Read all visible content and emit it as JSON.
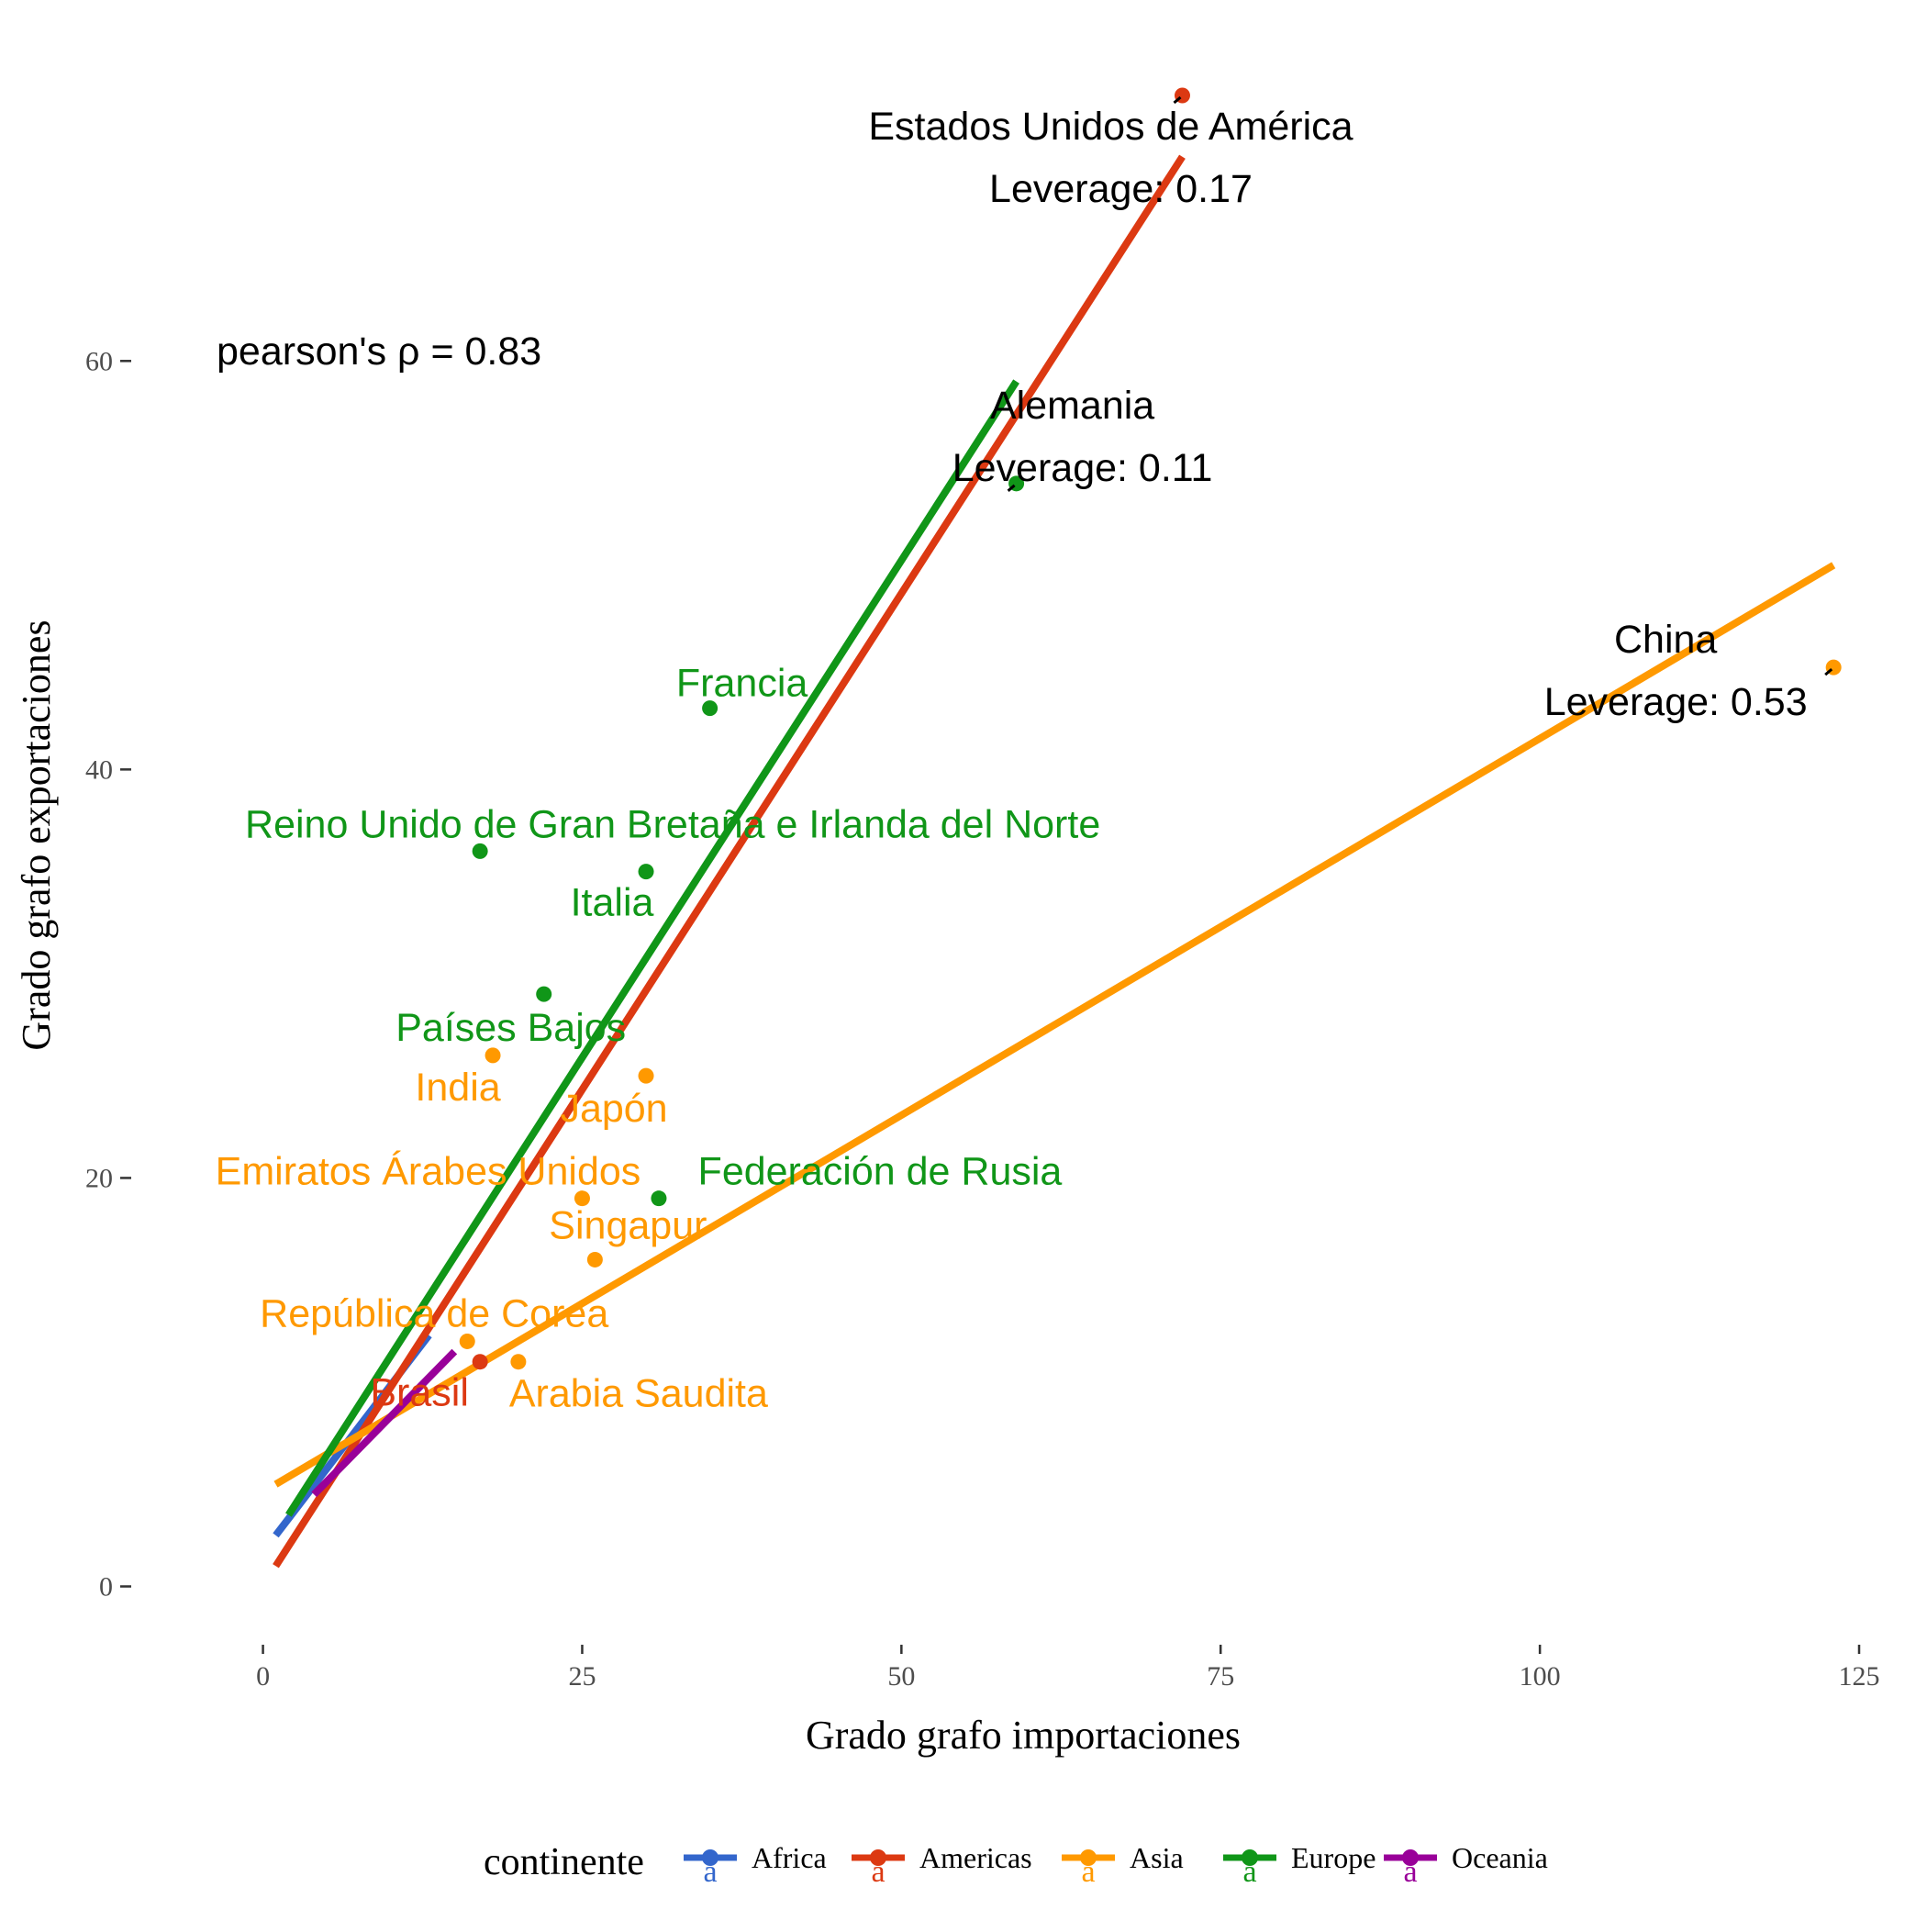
{
  "chart_data": {
    "type": "scatter",
    "title": "",
    "xlabel": "Grado grafo importaciones",
    "ylabel": "Grado grafo exportaciones",
    "xlim": [
      -5,
      125
    ],
    "ylim": [
      -2,
      73
    ],
    "x_ticks": [
      0,
      25,
      50,
      75,
      100,
      125
    ],
    "x_tick_labels": [
      "0",
      "25",
      "50",
      "75",
      "100",
      "125"
    ],
    "y_ticks": [
      0,
      20,
      40,
      60
    ],
    "y_tick_labels": [
      "0",
      "20",
      "40",
      "60"
    ],
    "grid": false,
    "legend_position": "bottom",
    "annotation": "pearson's  ρ = 0.83",
    "legend": {
      "title": "continente",
      "entries": [
        {
          "label": "Africa",
          "color": "#3366cc",
          "key": "Africa"
        },
        {
          "label": "Americas",
          "color": "#dc3912",
          "key": "Americas"
        },
        {
          "label": "Asia",
          "color": "#ff9900",
          "key": "Asia"
        },
        {
          "label": "Europe",
          "color": "#109618",
          "key": "Europe"
        },
        {
          "label": "Oceania",
          "color": "#990099",
          "key": "Oceania"
        }
      ],
      "glyph": "a"
    },
    "points": [
      {
        "x": 72,
        "y": 73,
        "continent": "Americas",
        "label": "Estados Unidos de América",
        "leverage": "Leverage: 0.17"
      },
      {
        "x": 123,
        "y": 45,
        "continent": "Asia",
        "label": "China",
        "leverage": "Leverage: 0.53"
      },
      {
        "x": 59,
        "y": 54,
        "continent": "Europe",
        "label": "Alemania",
        "leverage": "Leverage: 0.11"
      },
      {
        "x": 35,
        "y": 43,
        "continent": "Europe",
        "label": "Francia"
      },
      {
        "x": 17,
        "y": 36,
        "continent": "Europe",
        "label": "Reino Unido de Gran Bretaña e Irlanda del Norte"
      },
      {
        "x": 30,
        "y": 35,
        "continent": "Europe",
        "label": "Italia"
      },
      {
        "x": 22,
        "y": 29,
        "continent": "Europe",
        "label": "Países Bajos"
      },
      {
        "x": 18,
        "y": 26,
        "continent": "Asia",
        "label": "India"
      },
      {
        "x": 30,
        "y": 25,
        "continent": "Asia",
        "label": "Japón"
      },
      {
        "x": 25,
        "y": 19,
        "continent": "Asia",
        "label": "Emiratos Árabes Unidos"
      },
      {
        "x": 31,
        "y": 19,
        "continent": "Europe",
        "label": "Federación de Rusia"
      },
      {
        "x": 26,
        "y": 16,
        "continent": "Asia",
        "label": "Singapur"
      },
      {
        "x": 16,
        "y": 12,
        "continent": "Asia",
        "label": "República de Corea"
      },
      {
        "x": 17,
        "y": 11,
        "continent": "Americas",
        "label": "Brasil"
      },
      {
        "x": 20,
        "y": 11,
        "continent": "Asia",
        "label": "Arabia Saudita"
      }
    ],
    "regression_lines": [
      {
        "continent": "Africa",
        "x": [
          1,
          13
        ],
        "y": [
          2.5,
          12.3
        ]
      },
      {
        "continent": "Americas",
        "x": [
          1,
          72
        ],
        "y": [
          1,
          70
        ]
      },
      {
        "continent": "Asia",
        "x": [
          1,
          123
        ],
        "y": [
          5,
          50
        ]
      },
      {
        "continent": "Europe",
        "x": [
          2,
          59
        ],
        "y": [
          3.5,
          59
        ]
      },
      {
        "continent": "Oceania",
        "x": [
          4,
          15
        ],
        "y": [
          4.5,
          11.5
        ]
      }
    ]
  }
}
